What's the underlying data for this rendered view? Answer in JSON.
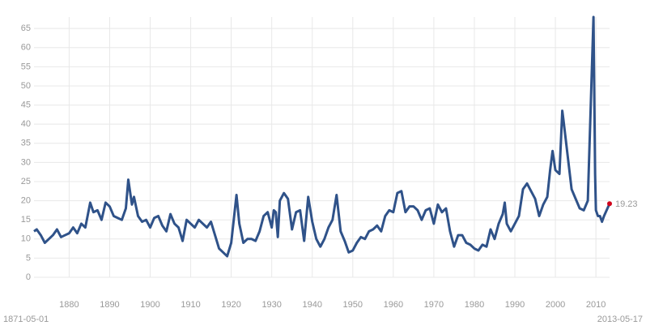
{
  "chart_data": {
    "type": "line",
    "x": [
      1871.33,
      1872,
      1873,
      1874,
      1875,
      1876,
      1877,
      1878,
      1879,
      1880,
      1881,
      1882,
      1883,
      1884,
      1885.2,
      1886,
      1887,
      1888,
      1889,
      1890,
      1891,
      1892,
      1893,
      1894,
      1894.6,
      1895.5,
      1896,
      1897,
      1898,
      1899,
      1900,
      1901,
      1902,
      1903,
      1904,
      1905,
      1906,
      1907,
      1908,
      1909,
      1910,
      1911,
      1912,
      1913,
      1914,
      1915,
      1916,
      1917,
      1918,
      1919,
      1920,
      1921.3,
      1922,
      1923,
      1924,
      1925,
      1926,
      1927,
      1928,
      1929,
      1930,
      1930.5,
      1931,
      1931.5,
      1932,
      1933,
      1934,
      1935,
      1936,
      1937,
      1938,
      1939,
      1940,
      1941,
      1942,
      1943,
      1944,
      1945,
      1946,
      1947,
      1948,
      1949,
      1950,
      1951,
      1952,
      1953,
      1954,
      1955,
      1956,
      1957,
      1958,
      1959,
      1960,
      1961,
      1962,
      1963,
      1964,
      1965,
      1966,
      1967,
      1968,
      1969,
      1970,
      1971,
      1972,
      1973,
      1974,
      1975,
      1976,
      1977,
      1978,
      1979,
      1980,
      1981,
      1982,
      1983,
      1984,
      1985,
      1986,
      1987,
      1987.5,
      1988,
      1989,
      1990,
      1991,
      1992,
      1993,
      1994,
      1995,
      1996,
      1997,
      1998,
      1998.7,
      1999.3,
      2000,
      2001,
      2001.7,
      2002,
      2003,
      2004,
      2005,
      2006,
      2007,
      2008,
      2009.4,
      2009.8,
      2010,
      2010.5,
      2011,
      2011.5,
      2012,
      2013.37
    ],
    "series": [
      {
        "color": "#2f5289",
        "values": [
          12,
          12.5,
          11,
          9,
          10,
          11,
          12.5,
          10.5,
          11,
          11.5,
          13,
          11.5,
          14,
          13,
          19.5,
          17,
          17.5,
          15,
          19.5,
          18.5,
          16,
          15.5,
          15,
          18,
          25.5,
          19,
          21,
          16,
          14.5,
          15,
          13,
          15.5,
          16,
          13.5,
          12,
          16.5,
          14,
          13,
          9.5,
          15,
          14,
          13,
          15,
          14,
          13,
          14.5,
          11,
          7.5,
          6.5,
          5.5,
          9,
          21.5,
          14,
          9,
          10,
          10,
          9.5,
          12,
          16,
          17,
          13,
          17.5,
          17,
          10.5,
          20,
          22,
          20.5,
          12.5,
          17,
          17.5,
          9.5,
          21,
          14.5,
          10,
          8,
          10,
          13,
          15,
          21.5,
          12,
          9.5,
          6.5,
          7,
          9,
          10.5,
          10,
          12,
          12.5,
          13.5,
          12,
          16,
          17.5,
          17,
          22,
          22.5,
          17,
          18.5,
          18.5,
          17.5,
          15,
          17.5,
          18,
          14,
          19,
          17,
          18,
          12,
          8,
          11,
          11,
          9,
          8.5,
          7.5,
          7,
          8.5,
          8,
          12.5,
          10,
          14,
          16.5,
          19.5,
          14,
          12,
          14,
          16,
          23,
          24.5,
          22.5,
          20.5,
          16,
          19,
          21,
          28,
          33,
          28,
          27,
          43.5,
          41,
          32,
          23,
          20.5,
          18,
          17.5,
          20,
          68,
          27,
          17.5,
          16,
          16,
          14.5,
          16,
          19.23
        ]
      }
    ],
    "last_point_color": "#d0021b",
    "start_label": "1871-05-01",
    "end_label": "2013-05-17",
    "xlim": [
      1871.33,
      2013.37
    ],
    "xticks": [
      1880,
      1890,
      1900,
      1910,
      1920,
      1930,
      1940,
      1950,
      1960,
      1970,
      1980,
      1990,
      2000,
      2010
    ],
    "ylim": [
      0,
      68
    ],
    "yticks": [
      0,
      5,
      10,
      15,
      20,
      25,
      30,
      35,
      40,
      45,
      50,
      55,
      60,
      65
    ],
    "grid": true
  }
}
